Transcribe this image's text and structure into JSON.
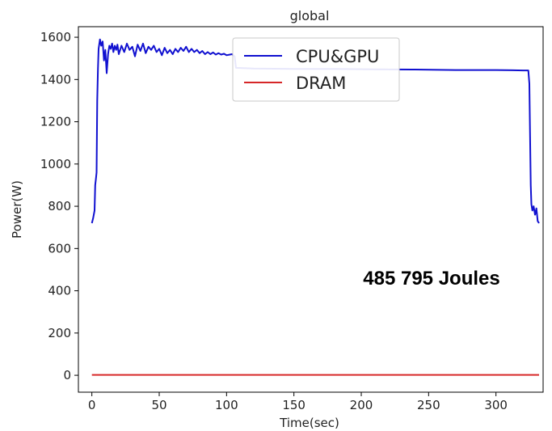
{
  "chart_data": {
    "type": "line",
    "title": "global",
    "xlabel": "Time(sec)",
    "ylabel": "Power(W)",
    "xlim": [
      -10,
      335
    ],
    "ylim": [
      -80,
      1650
    ],
    "x_ticks": [
      0,
      50,
      100,
      150,
      200,
      250,
      300
    ],
    "y_ticks": [
      0,
      200,
      400,
      600,
      800,
      1000,
      1200,
      1400,
      1600
    ],
    "grid": false,
    "legend_position": "top-center",
    "annotation": "485 795 Joules",
    "series": [
      {
        "name": "CPU&GPU",
        "color": "#1010d0",
        "points": [
          [
            0,
            720
          ],
          [
            1,
            745
          ],
          [
            2,
            780
          ],
          [
            2.5,
            900
          ],
          [
            3,
            930
          ],
          [
            3.5,
            960
          ],
          [
            4,
            1300
          ],
          [
            4.5,
            1450
          ],
          [
            5,
            1545
          ],
          [
            6,
            1590
          ],
          [
            7,
            1560
          ],
          [
            8,
            1580
          ],
          [
            9,
            1490
          ],
          [
            10,
            1540
          ],
          [
            11,
            1430
          ],
          [
            12,
            1520
          ],
          [
            13,
            1560
          ],
          [
            14,
            1545
          ],
          [
            15,
            1570
          ],
          [
            16,
            1530
          ],
          [
            17,
            1560
          ],
          [
            18,
            1540
          ],
          [
            19,
            1565
          ],
          [
            20,
            1520
          ],
          [
            22,
            1560
          ],
          [
            24,
            1530
          ],
          [
            26,
            1570
          ],
          [
            28,
            1540
          ],
          [
            30,
            1555
          ],
          [
            32,
            1510
          ],
          [
            34,
            1565
          ],
          [
            36,
            1535
          ],
          [
            38,
            1570
          ],
          [
            40,
            1525
          ],
          [
            42,
            1555
          ],
          [
            44,
            1540
          ],
          [
            46,
            1560
          ],
          [
            48,
            1530
          ],
          [
            50,
            1545
          ],
          [
            52,
            1515
          ],
          [
            54,
            1550
          ],
          [
            56,
            1525
          ],
          [
            58,
            1540
          ],
          [
            60,
            1520
          ],
          [
            62,
            1545
          ],
          [
            64,
            1530
          ],
          [
            66,
            1550
          ],
          [
            68,
            1535
          ],
          [
            70,
            1555
          ],
          [
            72,
            1530
          ],
          [
            74,
            1545
          ],
          [
            76,
            1530
          ],
          [
            78,
            1540
          ],
          [
            80,
            1525
          ],
          [
            82,
            1535
          ],
          [
            84,
            1520
          ],
          [
            86,
            1530
          ],
          [
            88,
            1520
          ],
          [
            90,
            1528
          ],
          [
            92,
            1518
          ],
          [
            94,
            1525
          ],
          [
            96,
            1518
          ],
          [
            98,
            1522
          ],
          [
            100,
            1515
          ],
          [
            104,
            1520
          ],
          [
            106,
            1510
          ],
          [
            107,
            1455
          ],
          [
            120,
            1452
          ],
          [
            150,
            1450
          ],
          [
            180,
            1450
          ],
          [
            210,
            1448
          ],
          [
            240,
            1447
          ],
          [
            270,
            1445
          ],
          [
            300,
            1445
          ],
          [
            320,
            1443
          ],
          [
            324,
            1443
          ],
          [
            324.8,
            1380
          ],
          [
            325.3,
            1150
          ],
          [
            325.8,
            900
          ],
          [
            326.3,
            810
          ],
          [
            327,
            780
          ],
          [
            328,
            800
          ],
          [
            329,
            760
          ],
          [
            330,
            790
          ],
          [
            331,
            730
          ],
          [
            332,
            720
          ]
        ]
      },
      {
        "name": "DRAM",
        "color": "#d62728",
        "points": [
          [
            0,
            2
          ],
          [
            332,
            2
          ]
        ]
      }
    ]
  }
}
